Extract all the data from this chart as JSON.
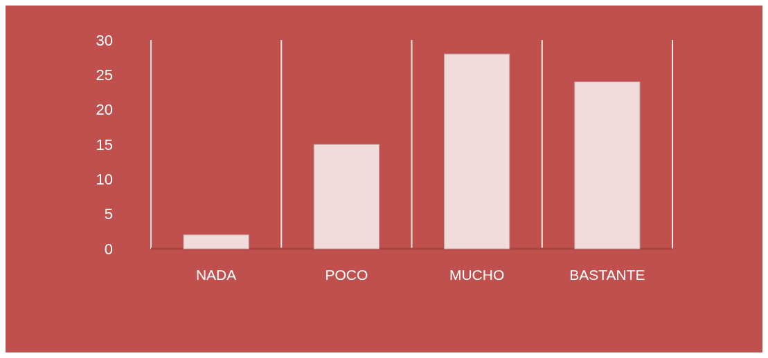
{
  "chart_data": {
    "type": "bar",
    "categories": [
      "NADA",
      "POCO",
      "MUCHO",
      "BASTANTE"
    ],
    "values": [
      2,
      15,
      28,
      24
    ],
    "color": "#f2dcdb",
    "ylim": [
      0,
      30
    ],
    "yticks": [
      0,
      5,
      10,
      15,
      20,
      25,
      30
    ],
    "grid": "x"
  }
}
